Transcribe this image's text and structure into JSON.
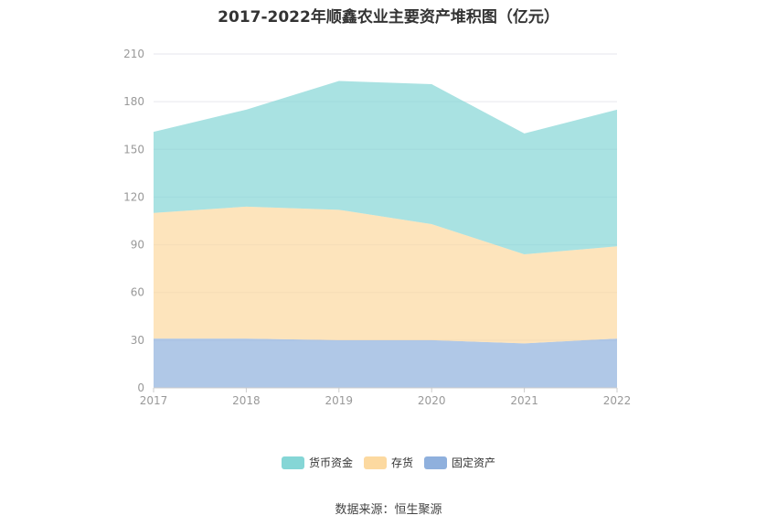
{
  "chart_data": {
    "type": "area",
    "stacked": true,
    "title": "2017-2022年顺鑫农业主要资产堆积图（亿元）",
    "categories": [
      "2017",
      "2018",
      "2019",
      "2020",
      "2021",
      "2022"
    ],
    "y_ticks": [
      "0",
      "30",
      "60",
      "90",
      "120",
      "150",
      "180",
      "210"
    ],
    "ylim": [
      0,
      210
    ],
    "grid": true,
    "legend_position": "bottom",
    "series": [
      {
        "name": "固定资产",
        "color": "#8fb0dd",
        "values": [
          31,
          31,
          30,
          30,
          28,
          31
        ]
      },
      {
        "name": "存货",
        "color": "#fcd9a0",
        "values": [
          79,
          83,
          82,
          73,
          56,
          58
        ]
      },
      {
        "name": "货币资金",
        "color": "#85d6d6",
        "values": [
          51,
          61,
          81,
          88,
          76,
          86
        ]
      }
    ],
    "legend_order": [
      "货币资金",
      "存货",
      "固定资产"
    ]
  },
  "source_label": "数据来源：恒生聚源"
}
